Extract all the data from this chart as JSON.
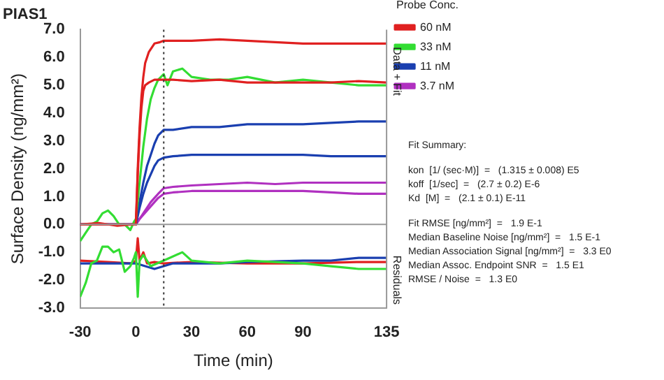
{
  "chart_data": {
    "type": "line",
    "title": "PIAS1",
    "xlabel": "Time (min)",
    "ylabel": "Surface Density (ng/mm²)",
    "legend_title": "Probe Conc.",
    "legend": "right",
    "marker": "none",
    "line_style": "solid",
    "xlim": [
      -30,
      135
    ],
    "xticks": [
      -30,
      0,
      30,
      60,
      90,
      135
    ],
    "ylim": [
      -3,
      7
    ],
    "yticks": [
      {
        "value": -3,
        "label": "-3.0"
      },
      {
        "value": -2,
        "label": "-2.0"
      },
      {
        "value": -1,
        "label": "-1.0"
      },
      {
        "value": 0,
        "label": "0.0"
      },
      {
        "value": 1,
        "label": "1.0"
      },
      {
        "value": 2,
        "label": "2.0"
      },
      {
        "value": 3,
        "label": "3.0"
      },
      {
        "value": 4,
        "label": "4.0"
      },
      {
        "value": 5,
        "label": "5.0"
      },
      {
        "value": 6,
        "label": "6.0"
      },
      {
        "value": 7,
        "label": "7.0"
      }
    ],
    "ref_lines": [
      {
        "axis": "x",
        "value": 15,
        "color": "#333333",
        "line_style": "dotted"
      },
      {
        "axis": "y",
        "value": 0,
        "color": "#999999",
        "line_style": "solid"
      }
    ],
    "annotations": [
      "Data + Fit",
      "Residuals",
      "Fit Summary:",
      "kon  [1/ (sec·M)]  =   (1.315 ± 0.008) E5",
      "koff  [1/sec]  =   (2.7 ± 0.2) E-6",
      "Kd  [M]  =   (2.1 ± 0.1) E-11",
      "Fit RMSE [ng/mm²]  =   1.9 E-1",
      "Median Baseline Noise [ng/mm²]  =   1.5 E-1",
      "Median Association Signal [ng/mm²]  =   3.3 E0",
      "Median Assoc. Endpoint SNR  =   1.5 E1",
      "RMSE / Noise  =   1.3 E0"
    ],
    "series": [
      {
        "name": "60 nM",
        "color": "#e02020",
        "x": [
          -30,
          -20,
          -10,
          -2,
          0,
          1,
          2,
          3,
          4,
          5,
          7,
          10,
          13,
          15,
          20,
          30,
          45,
          60,
          75,
          90,
          105,
          120,
          135
        ],
        "values": [
          0,
          0.05,
          -0.05,
          0,
          0,
          2.0,
          3.5,
          4.6,
          5.3,
          5.8,
          6.2,
          6.5,
          6.55,
          6.6,
          6.6,
          6.6,
          6.65,
          6.6,
          6.55,
          6.5,
          6.5,
          6.5,
          6.5
        ]
      },
      {
        "color": "#e02020",
        "x": [
          -30,
          -15,
          0,
          1,
          2,
          3,
          4,
          5,
          7,
          10,
          15,
          20,
          30,
          45,
          60,
          75,
          90,
          105,
          120,
          135
        ],
        "values": [
          0,
          0,
          0,
          1.8,
          3.2,
          4.2,
          4.8,
          5.0,
          5.1,
          5.2,
          5.2,
          5.2,
          5.15,
          5.2,
          5.1,
          5.1,
          5.1,
          5.1,
          5.15,
          5.1
        ]
      },
      {
        "name": "33 nM",
        "color": "#33dd33",
        "x": [
          -30,
          -27,
          -24,
          -21,
          -18,
          -15,
          -12,
          -9,
          -6,
          -3,
          -1,
          0,
          2,
          4,
          6,
          8,
          10,
          12,
          15,
          17,
          20,
          25,
          30,
          40,
          50,
          60,
          75,
          90,
          105,
          120,
          135
        ],
        "values": [
          -0.6,
          -0.3,
          0.0,
          0.1,
          0.4,
          0.5,
          0.3,
          0.0,
          0.0,
          -0.2,
          0.1,
          0.2,
          1.5,
          2.8,
          3.8,
          4.5,
          4.9,
          5.2,
          5.4,
          5.0,
          5.5,
          5.6,
          5.3,
          5.2,
          5.2,
          5.3,
          5.1,
          5.2,
          5.1,
          5.0,
          5.0
        ]
      },
      {
        "name": "11 nM",
        "color": "#1a3fb0",
        "x": [
          -30,
          -15,
          0,
          2,
          4,
          6,
          8,
          10,
          12,
          15,
          20,
          30,
          45,
          60,
          75,
          90,
          105,
          120,
          135
        ],
        "values": [
          0,
          0,
          0,
          0.8,
          1.5,
          2.1,
          2.5,
          2.9,
          3.2,
          3.4,
          3.4,
          3.5,
          3.5,
          3.6,
          3.6,
          3.6,
          3.65,
          3.7,
          3.7
        ]
      },
      {
        "color": "#1a3fb0",
        "x": [
          -30,
          -15,
          0,
          2,
          4,
          6,
          8,
          10,
          12,
          15,
          20,
          30,
          45,
          60,
          75,
          90,
          105,
          120,
          135
        ],
        "values": [
          0,
          0,
          0,
          0.6,
          1.1,
          1.5,
          1.8,
          2.1,
          2.3,
          2.4,
          2.45,
          2.5,
          2.5,
          2.5,
          2.5,
          2.5,
          2.45,
          2.45,
          2.45
        ]
      },
      {
        "name": "3.7 nM",
        "color": "#b030c0",
        "x": [
          -30,
          -15,
          0,
          2,
          4,
          6,
          8,
          10,
          12,
          15,
          20,
          30,
          45,
          60,
          75,
          90,
          105,
          120,
          135
        ],
        "values": [
          0,
          0,
          0,
          0.2,
          0.4,
          0.6,
          0.8,
          0.95,
          1.1,
          1.3,
          1.35,
          1.4,
          1.45,
          1.5,
          1.45,
          1.5,
          1.5,
          1.5,
          1.5
        ]
      },
      {
        "color": "#b030c0",
        "x": [
          -30,
          -15,
          0,
          2,
          4,
          6,
          8,
          10,
          12,
          15,
          20,
          30,
          45,
          60,
          75,
          90,
          105,
          120,
          135
        ],
        "values": [
          0,
          0,
          0,
          0.2,
          0.35,
          0.5,
          0.65,
          0.8,
          0.95,
          1.1,
          1.15,
          1.2,
          1.2,
          1.2,
          1.2,
          1.2,
          1.15,
          1.1,
          1.1
        ]
      },
      {
        "color": "#33dd33",
        "x": [
          -30,
          -27,
          -24,
          -21,
          -18,
          -15,
          -12,
          -9,
          -6,
          -3,
          -1,
          0,
          1,
          2,
          4,
          8,
          15,
          25,
          30,
          45,
          60,
          90,
          105,
          120,
          135
        ],
        "values": [
          -2.6,
          -2.1,
          -1.4,
          -1.3,
          -0.8,
          -0.8,
          -1.0,
          -0.9,
          -1.7,
          -1.5,
          -1.2,
          -1.0,
          -2.6,
          -1.3,
          -1.1,
          -1.5,
          -1.3,
          -1.0,
          -1.3,
          -1.4,
          -1.3,
          -1.4,
          -1.5,
          -1.6,
          -1.6
        ]
      },
      {
        "color": "#1a3fb0",
        "x": [
          -30,
          -15,
          0,
          5,
          10,
          15,
          20,
          30,
          45,
          60,
          90,
          105,
          120,
          135
        ],
        "values": [
          -1.4,
          -1.4,
          -1.4,
          -1.5,
          -1.6,
          -1.5,
          -1.4,
          -1.4,
          -1.4,
          -1.35,
          -1.3,
          -1.3,
          -1.2,
          -1.2
        ]
      },
      {
        "color": "#e02020",
        "x": [
          -30,
          -15,
          -2,
          0,
          1,
          2,
          4,
          6,
          10,
          15,
          30,
          60,
          90,
          120,
          135
        ],
        "values": [
          -1.3,
          -1.35,
          -1.4,
          -1.3,
          -0.5,
          -1.3,
          -1.0,
          -1.4,
          -1.35,
          -1.4,
          -1.35,
          -1.4,
          -1.4,
          -1.35,
          -1.35
        ]
      }
    ]
  }
}
